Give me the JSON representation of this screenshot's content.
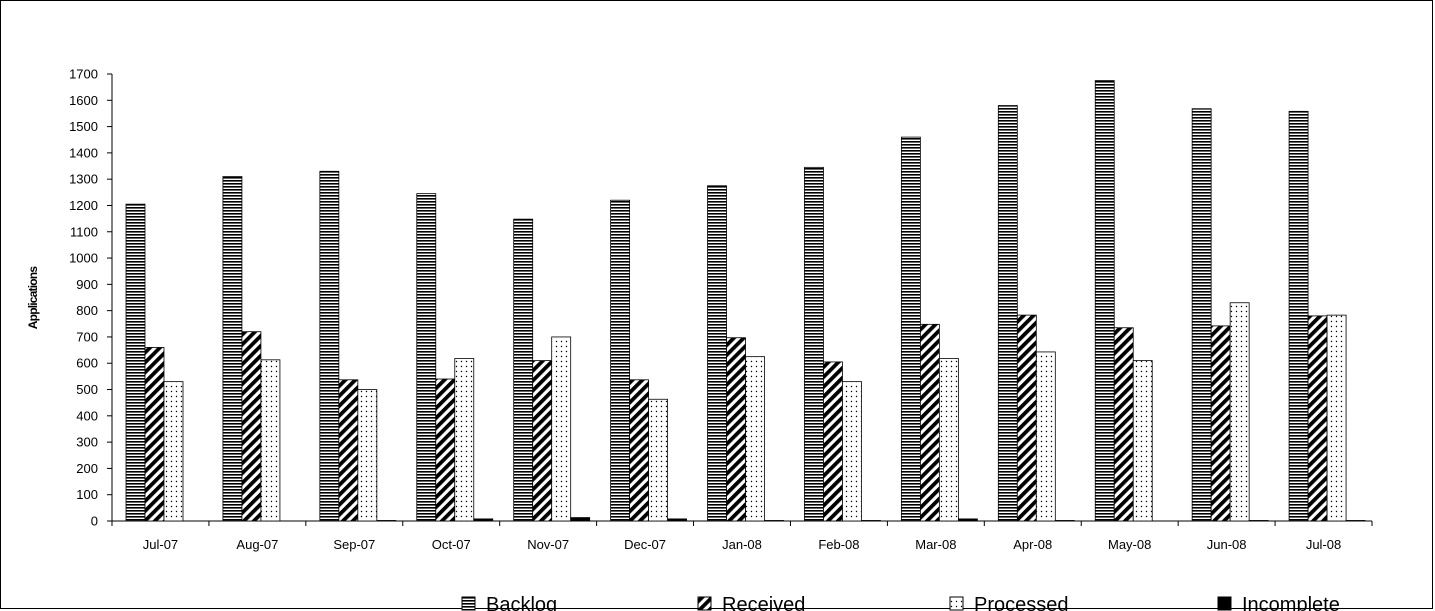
{
  "chart_data": {
    "type": "bar",
    "title": "",
    "xlabel": "",
    "ylabel": "Applications",
    "ylim": [
      0,
      1700
    ],
    "ytick_step": 100,
    "grid": false,
    "legend_position": "bottom",
    "categories": [
      "Jul-07",
      "Aug-07",
      "Sep-07",
      "Oct-07",
      "Nov-07",
      "Dec-07",
      "Jan-08",
      "Feb-08",
      "Mar-08",
      "Apr-08",
      "May-08",
      "Jun-08",
      "Jul-08"
    ],
    "series": [
      {
        "name": "Backlog",
        "pattern": "horizontal-stripes",
        "values": [
          1205,
          1310,
          1330,
          1245,
          1148,
          1220,
          1275,
          1345,
          1460,
          1580,
          1675,
          1568,
          1558
        ]
      },
      {
        "name": "Received",
        "pattern": "diagonal-stripes",
        "values": [
          660,
          720,
          537,
          540,
          610,
          537,
          697,
          605,
          748,
          783,
          735,
          742,
          780
        ]
      },
      {
        "name": "Processed",
        "pattern": "dotted",
        "values": [
          530,
          613,
          500,
          618,
          700,
          463,
          625,
          530,
          618,
          643,
          610,
          830,
          783
        ]
      },
      {
        "name": "Incomplete",
        "pattern": "solid-black",
        "values": [
          0,
          0,
          2,
          8,
          13,
          8,
          2,
          2,
          8,
          2,
          0,
          2,
          2
        ]
      }
    ]
  }
}
